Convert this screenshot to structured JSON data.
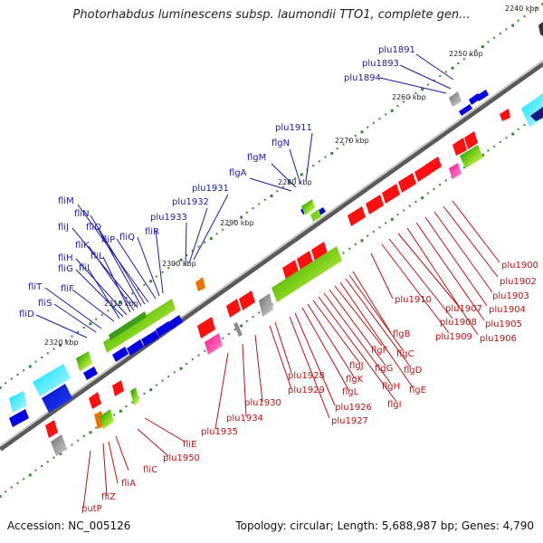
{
  "title": "Photorhabdus luminescens subsp. laumondii TTO1, complete gen...",
  "footer": {
    "accession": "Accession: NC_005126",
    "summary": "Topology: circular; Length: 5,688,987 bp; Genes: 4,790"
  },
  "kbp_labels": [
    "2240 kbp",
    "2250 kbp",
    "2260 kbp",
    "2270 kbp",
    "2280 kbp",
    "2290 kbp",
    "2300 kbp",
    "2310 kbp",
    "2320 kbp"
  ],
  "upper_gene_labels": [
    "plu1891",
    "plu1893",
    "plu1894",
    "plu1911",
    "flgN",
    "flgM",
    "flgA",
    "plu1931",
    "plu1932",
    "plu1933",
    "fliR",
    "fliQ",
    "fliP",
    "fliM",
    "fliN",
    "fliO",
    "fliJ",
    "fliK",
    "fliL",
    "fliH",
    "fliG",
    "fliI",
    "fliF",
    "fliT",
    "fliS",
    "fliD"
  ],
  "lower_gene_labels": [
    "plu1900",
    "plu1902",
    "plu1903",
    "plu1904",
    "plu1905",
    "plu1906",
    "plu1907",
    "plu1908",
    "plu1909",
    "plu1910",
    "flgB",
    "flgC",
    "flgD",
    "flgE",
    "flgF",
    "flgG",
    "flgH",
    "flgI",
    "flgJ",
    "flgK",
    "flgL",
    "plu1926",
    "plu1927",
    "plu1928",
    "plu1929",
    "plu1930",
    "plu1934",
    "plu1935",
    "fliE",
    "plu1950",
    "fliC",
    "fliA",
    "fliZ",
    "putP"
  ],
  "colors": {
    "upper_gene": "#1a1aa8",
    "lower_gene": "#c01010",
    "tick": "#2e8b2e",
    "backbone": "#8c8c8c"
  }
}
